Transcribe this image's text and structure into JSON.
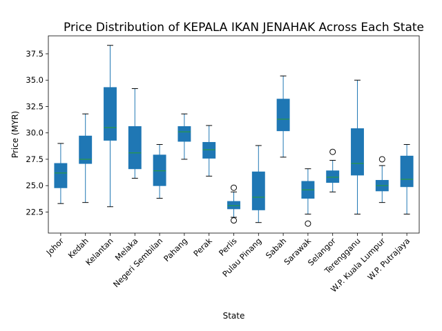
{
  "chart_data": {
    "type": "boxplot",
    "title": "Price Distribution of KEPALA IKAN JENAHAK Across Each State",
    "xlabel": "State",
    "ylabel": "Price (MYR)",
    "ylim": [
      20.5,
      39.2
    ],
    "yticks": [
      22.5,
      25.0,
      27.5,
      30.0,
      32.5,
      35.0,
      37.5
    ],
    "ytick_labels": [
      "22.5",
      "25.0",
      "27.5",
      "30.0",
      "32.5",
      "35.0",
      "37.5"
    ],
    "grid": false,
    "legend": "none",
    "colors": {
      "box_fill": "#1f77b4",
      "whisker": "#1f77b4",
      "median": "#2ca02c",
      "outlier": "#000000"
    },
    "categories": [
      "Johor",
      "Kedah",
      "Kelantan",
      "Melaka",
      "Negeri Sembilan",
      "Pahang",
      "Perak",
      "Perlis",
      "Pulau Pinang",
      "Sabah",
      "Sarawak",
      "Selangor",
      "Terengganu",
      "W.P. Kuala Lumpur",
      "W.P. Putrajaya"
    ],
    "boxes": [
      {
        "whislo": 23.3,
        "q1": 24.8,
        "med": 26.2,
        "q3": 27.1,
        "whishi": 29.0,
        "fliers": []
      },
      {
        "whislo": 23.4,
        "q1": 27.1,
        "med": 27.5,
        "q3": 29.7,
        "whishi": 31.8,
        "fliers": []
      },
      {
        "whislo": 23.0,
        "q1": 29.3,
        "med": 30.5,
        "q3": 34.3,
        "whishi": 38.3,
        "fliers": []
      },
      {
        "whislo": 25.7,
        "q1": 26.6,
        "med": 28.1,
        "q3": 30.6,
        "whishi": 34.2,
        "fliers": []
      },
      {
        "whislo": 23.8,
        "q1": 25.0,
        "med": 26.4,
        "q3": 27.9,
        "whishi": 28.9,
        "fliers": []
      },
      {
        "whislo": 27.5,
        "q1": 29.2,
        "med": 30.1,
        "q3": 30.6,
        "whishi": 31.8,
        "fliers": []
      },
      {
        "whislo": 25.9,
        "q1": 27.6,
        "med": 28.4,
        "q3": 29.1,
        "whishi": 30.7,
        "fliers": []
      },
      {
        "whislo": 22.0,
        "q1": 22.8,
        "med": 23.1,
        "q3": 23.5,
        "whishi": 24.4,
        "fliers": [
          24.8,
          21.7
        ]
      },
      {
        "whislo": 21.5,
        "q1": 22.7,
        "med": 23.9,
        "q3": 26.3,
        "whishi": 28.8,
        "fliers": []
      },
      {
        "whislo": 27.7,
        "q1": 30.2,
        "med": 31.3,
        "q3": 33.2,
        "whishi": 35.4,
        "fliers": []
      },
      {
        "whislo": 22.3,
        "q1": 23.8,
        "med": 24.6,
        "q3": 25.4,
        "whishi": 26.6,
        "fliers": [
          21.4
        ]
      },
      {
        "whislo": 24.4,
        "q1": 25.3,
        "med": 25.8,
        "q3": 26.4,
        "whishi": 27.4,
        "fliers": [
          28.2
        ]
      },
      {
        "whislo": 22.3,
        "q1": 26.0,
        "med": 27.1,
        "q3": 30.4,
        "whishi": 35.0,
        "fliers": []
      },
      {
        "whislo": 23.4,
        "q1": 24.5,
        "med": 25.0,
        "q3": 25.5,
        "whishi": 26.9,
        "fliers": [
          27.5
        ]
      },
      {
        "whislo": 22.3,
        "q1": 24.9,
        "med": 25.6,
        "q3": 27.8,
        "whishi": 28.9,
        "fliers": []
      }
    ]
  }
}
